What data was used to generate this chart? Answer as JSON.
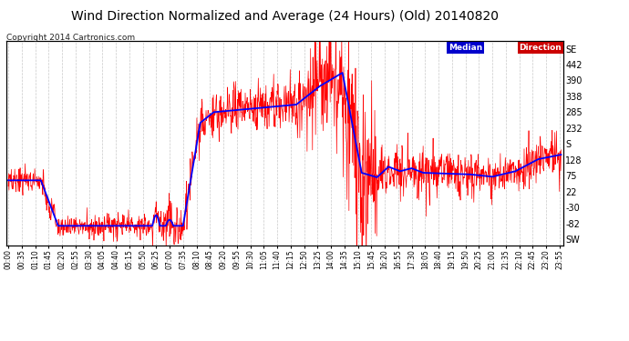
{
  "title": "Wind Direction Normalized and Average (24 Hours) (Old) 20140820",
  "copyright": "Copyright 2014 Cartronics.com",
  "legend_median_label": "Median",
  "legend_direction_label": "Direction",
  "legend_median_bg": "#0000cc",
  "legend_direction_bg": "#cc0000",
  "legend_text_color": "#ffffff",
  "ytick_labels_right": [
    "SE",
    "442",
    "390",
    "338",
    "285",
    "232",
    "S",
    "128",
    "75",
    "22",
    "-30",
    "-82",
    "SW"
  ],
  "ytick_values": [
    494,
    442,
    390,
    338,
    285,
    232,
    180,
    128,
    75,
    22,
    -30,
    -82,
    -134
  ],
  "ylim": [
    -155,
    520
  ],
  "background_color": "#ffffff",
  "grid_color": "#bbbbbb",
  "line_color_red": "#ff0000",
  "line_color_blue": "#0000ff",
  "title_fontsize": 10,
  "copyright_fontsize": 6.5
}
